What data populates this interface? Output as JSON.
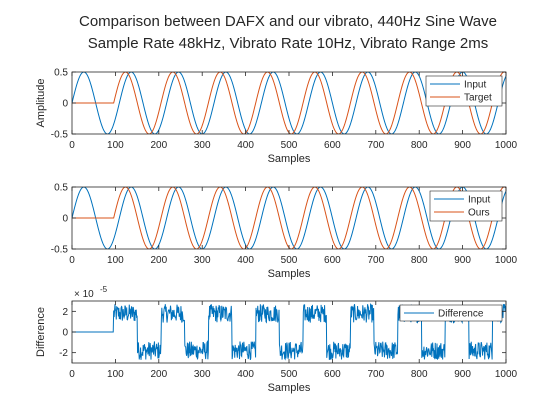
{
  "figure": {
    "title_line1": "Comparison between DAFX and our vibrato, 440Hz Sine Wave",
    "title_line2": "Sample Rate 48kHz, Vibrato Rate 10Hz, Vibrato Range 2ms"
  },
  "colors": {
    "input": "#0072BD",
    "target": "#D95319",
    "difference": "#0072BD",
    "axes": "#262626"
  },
  "chart_data": [
    {
      "type": "line",
      "xlabel": "Samples",
      "ylabel": "Amplitude",
      "xlim": [
        0,
        1000
      ],
      "ylim": [
        -0.5,
        0.5
      ],
      "xticks": [
        0,
        100,
        200,
        300,
        400,
        500,
        600,
        700,
        800,
        900,
        1000
      ],
      "yticks": [
        -0.5,
        0,
        0.5
      ],
      "ytick_labels": [
        "-0.5",
        "0",
        "0.5"
      ],
      "legend": "top-right",
      "series": [
        {
          "name": "Input",
          "color": "#0072BD",
          "period": 109.09,
          "phase_start": 0,
          "amplitude": 0.5,
          "flat_until": 0
        },
        {
          "name": "Target",
          "color": "#D95319",
          "period": 109.09,
          "phase_start": 96,
          "amplitude": 0.5,
          "flat_until": 96
        }
      ]
    },
    {
      "type": "line",
      "xlabel": "Samples",
      "ylabel": "",
      "xlim": [
        0,
        1000
      ],
      "ylim": [
        -0.5,
        0.5
      ],
      "xticks": [
        0,
        100,
        200,
        300,
        400,
        500,
        600,
        700,
        800,
        900,
        1000
      ],
      "yticks": [
        -0.5,
        0,
        0.5
      ],
      "ytick_labels": [
        "-0.5",
        "0",
        "0.5"
      ],
      "legend": "top-right",
      "series": [
        {
          "name": "Input",
          "color": "#0072BD",
          "period": 109.09,
          "phase_start": 0,
          "amplitude": 0.5,
          "flat_until": 0
        },
        {
          "name": "Ours",
          "color": "#D95319",
          "period": 109.09,
          "phase_start": 96,
          "amplitude": 0.5,
          "flat_until": 96
        }
      ]
    },
    {
      "type": "line",
      "xlabel": "Samples",
      "ylabel": "Difference",
      "xlim": [
        0,
        1000
      ],
      "ylim": [
        -3,
        3
      ],
      "exponent_label": "× 10",
      "exponent_value": "-5",
      "xticks": [
        0,
        100,
        200,
        300,
        400,
        500,
        600,
        700,
        800,
        900,
        1000
      ],
      "yticks": [
        -2,
        0,
        2
      ],
      "ytick_labels": [
        "-2",
        "0",
        "2"
      ],
      "legend": "top-right",
      "series": [
        {
          "name": "Difference",
          "color": "#0072BD",
          "flat_until": 96,
          "level_amplitude": 1.8,
          "noise": 0.9,
          "level_period": 109.09
        }
      ]
    }
  ]
}
